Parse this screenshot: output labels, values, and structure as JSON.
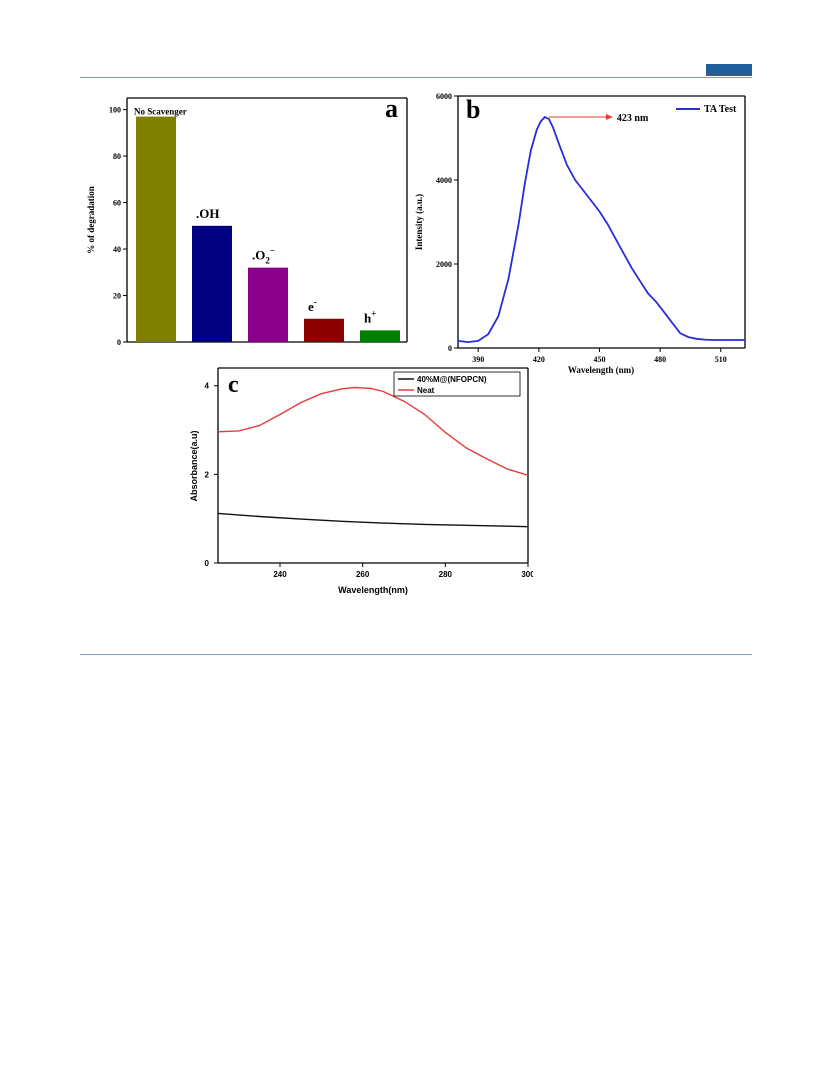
{
  "page": {
    "header_accent": "#1f5f9e"
  },
  "chart_data": [
    {
      "id": "a",
      "type": "bar",
      "panel_letter": "a",
      "title": "",
      "xlabel": "",
      "ylabel": "% of degradation",
      "ylim": [
        0,
        105
      ],
      "yticks": [
        0,
        20,
        40,
        60,
        80,
        100
      ],
      "categories": [
        "No Scavenger",
        ".OH",
        ".O2−",
        "e−",
        "h+"
      ],
      "label_main": [
        "No Scavenger",
        ".OH",
        ".O",
        "e",
        "h"
      ],
      "label_sub": [
        "",
        "",
        "2",
        "",
        ""
      ],
      "label_sup": [
        "",
        "",
        "−",
        "-",
        "+"
      ],
      "values": [
        97,
        50,
        32,
        10,
        5
      ],
      "colors": [
        "#808000",
        "#000080",
        "#8b008b",
        "#8b0000",
        "#008000"
      ],
      "grid": false
    },
    {
      "id": "b",
      "type": "line",
      "panel_letter": "b",
      "title": "",
      "xlabel": "Wavelength (nm)",
      "ylabel": "Intensity (a.u.)",
      "xlim": [
        380,
        522
      ],
      "ylim": [
        0,
        6000
      ],
      "xticks": [
        390,
        420,
        450,
        480,
        510
      ],
      "yticks": [
        0,
        2000,
        4000,
        6000
      ],
      "legend": "top-right",
      "annotation": {
        "text": "423 nm",
        "x": 423,
        "y": 5500
      },
      "series": [
        {
          "name": "TA Test",
          "color": "#2b2bd9",
          "x": [
            380,
            385,
            390,
            395,
            400,
            405,
            410,
            413,
            416,
            419,
            421,
            423,
            425,
            427,
            430,
            434,
            438,
            442,
            446,
            450,
            454,
            458,
            462,
            466,
            470,
            474,
            478,
            482,
            486,
            490,
            494,
            498,
            502,
            506,
            510,
            515,
            522
          ],
          "y": [
            170,
            140,
            170,
            330,
            760,
            1650,
            2950,
            3900,
            4700,
            5200,
            5400,
            5500,
            5450,
            5250,
            4850,
            4350,
            4000,
            3750,
            3500,
            3250,
            2950,
            2600,
            2250,
            1900,
            1600,
            1300,
            1100,
            850,
            600,
            350,
            260,
            220,
            200,
            190,
            190,
            190,
            190
          ]
        }
      ],
      "grid": false
    },
    {
      "id": "c",
      "type": "line",
      "panel_letter": "c",
      "title": "",
      "xlabel": "Wavelength(nm)",
      "ylabel": "Absorbance(a.u)",
      "xlim": [
        225,
        300
      ],
      "ylim": [
        0,
        4.4
      ],
      "xticks": [
        240,
        260,
        280,
        300
      ],
      "xtick_labels": [
        "240",
        "260",
        "280",
        "300"
      ],
      "yticks": [
        0,
        2,
        4
      ],
      "legend": "top-right",
      "series": [
        {
          "name": "40%M@(NFOPCN)",
          "color": "#111111",
          "x": [
            225,
            235,
            245,
            255,
            265,
            275,
            285,
            295,
            300
          ],
          "y": [
            1.12,
            1.05,
            0.99,
            0.94,
            0.9,
            0.87,
            0.85,
            0.83,
            0.82
          ]
        },
        {
          "name": "Neat",
          "color": "#e83a3a",
          "x": [
            225,
            230,
            235,
            240,
            245,
            250,
            255,
            258,
            262,
            265,
            270,
            275,
            280,
            285,
            290,
            295,
            300
          ],
          "y": [
            2.96,
            2.98,
            3.1,
            3.35,
            3.62,
            3.82,
            3.93,
            3.96,
            3.94,
            3.87,
            3.65,
            3.35,
            2.95,
            2.6,
            2.35,
            2.12,
            1.98
          ]
        }
      ],
      "grid": false
    }
  ]
}
